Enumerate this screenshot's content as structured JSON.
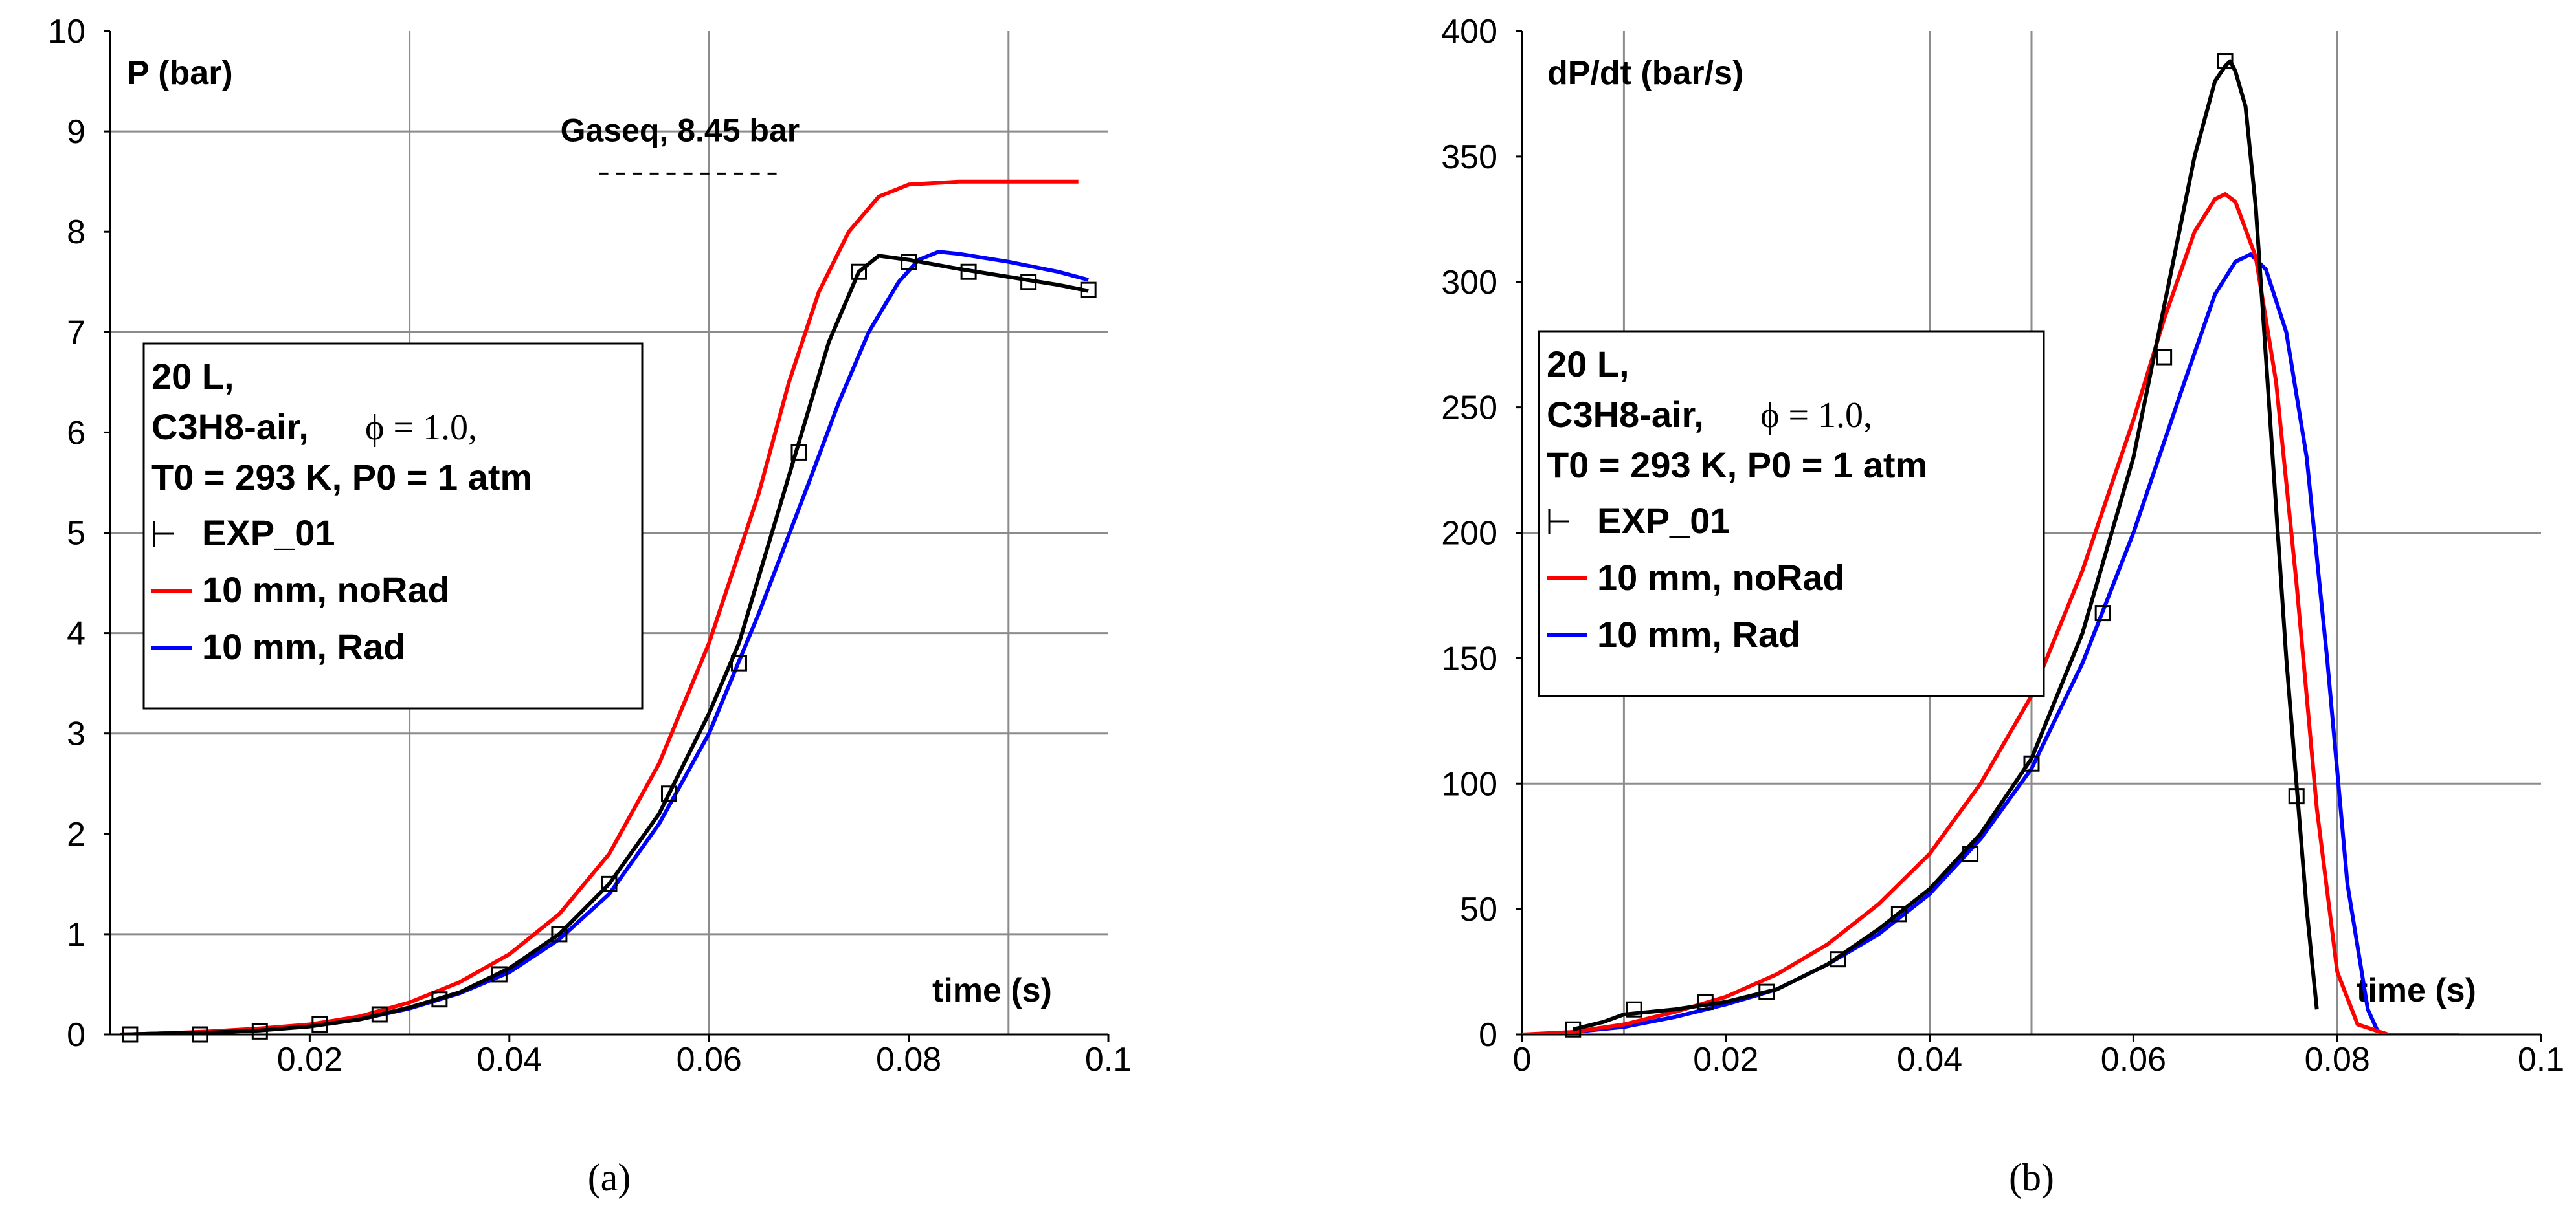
{
  "chart_data": [
    {
      "id": "a",
      "type": "line",
      "caption": "(a)",
      "ylabel": "P (bar)",
      "xlabel": "time (s)",
      "xlim": [
        0,
        0.1
      ],
      "ylim": [
        0,
        10
      ],
      "x_ticks": [
        0.02,
        0.04,
        0.06,
        0.08,
        0.1
      ],
      "x_tick_labels": [
        "0.02",
        "0.04",
        "0.06",
        "0.08",
        "0.1"
      ],
      "y_ticks": [
        0,
        1,
        2,
        3,
        4,
        5,
        6,
        7,
        8,
        9,
        10
      ],
      "y_tick_labels": [
        "0",
        "1",
        "2",
        "3",
        "4",
        "5",
        "6",
        "7",
        "8",
        "9",
        "10"
      ],
      "vgrid": [
        0.03,
        0.06,
        0.09
      ],
      "hgrid": [
        1,
        3,
        4,
        5,
        7,
        9
      ],
      "annotation": {
        "text": "Gaseq, 8.45 bar",
        "value": 8.45,
        "x_from": 0.049,
        "x_to": 0.067
      },
      "legend": {
        "line1": "20 L,",
        "line2_species": "C3H8-air,",
        "line2_phi": "ϕ = 1.0,",
        "line3": "T0 = 293 K, P0 = 1 atm",
        "entries": [
          "EXP_01",
          "10 mm, noRad",
          "10 mm, Rad"
        ]
      },
      "series": [
        {
          "name": "EXP_01",
          "color": "#000000",
          "x": [
            0.001,
            0.005,
            0.01,
            0.015,
            0.02,
            0.025,
            0.03,
            0.035,
            0.04,
            0.045,
            0.05,
            0.055,
            0.06,
            0.063,
            0.066,
            0.069,
            0.072,
            0.075,
            0.077,
            0.08,
            0.085,
            0.09,
            0.095,
            0.098
          ],
          "y": [
            0.0,
            0.01,
            0.02,
            0.04,
            0.08,
            0.15,
            0.27,
            0.42,
            0.66,
            1.0,
            1.5,
            2.2,
            3.2,
            3.9,
            4.9,
            5.9,
            6.9,
            7.6,
            7.76,
            7.72,
            7.63,
            7.55,
            7.47,
            7.41
          ],
          "markers_x": [
            0.002,
            0.009,
            0.015,
            0.021,
            0.027,
            0.033,
            0.039,
            0.045,
            0.05,
            0.056,
            0.063,
            0.069,
            0.075,
            0.08,
            0.086,
            0.092,
            0.098
          ],
          "markers_y": [
            0.0,
            0.0,
            0.03,
            0.1,
            0.2,
            0.35,
            0.6,
            1.0,
            1.5,
            2.4,
            3.7,
            5.8,
            7.6,
            7.7,
            7.6,
            7.5,
            7.42
          ]
        },
        {
          "name": "10 mm, noRad",
          "color": "#ff0000",
          "x": [
            0.001,
            0.005,
            0.01,
            0.015,
            0.02,
            0.025,
            0.03,
            0.035,
            0.04,
            0.045,
            0.05,
            0.055,
            0.06,
            0.065,
            0.068,
            0.071,
            0.074,
            0.077,
            0.08,
            0.085,
            0.09,
            0.095,
            0.097
          ],
          "y": [
            0.0,
            0.01,
            0.03,
            0.06,
            0.1,
            0.18,
            0.32,
            0.52,
            0.8,
            1.2,
            1.8,
            2.7,
            3.9,
            5.4,
            6.5,
            7.4,
            8.0,
            8.35,
            8.47,
            8.5,
            8.5,
            8.5,
            8.5
          ]
        },
        {
          "name": "10 mm, Rad",
          "color": "#0000ff",
          "x": [
            0.001,
            0.005,
            0.01,
            0.015,
            0.02,
            0.025,
            0.03,
            0.035,
            0.04,
            0.045,
            0.05,
            0.055,
            0.06,
            0.065,
            0.07,
            0.073,
            0.076,
            0.079,
            0.081,
            0.083,
            0.085,
            0.09,
            0.095,
            0.098
          ],
          "y": [
            0.0,
            0.01,
            0.02,
            0.05,
            0.09,
            0.15,
            0.26,
            0.41,
            0.62,
            0.95,
            1.4,
            2.1,
            3.0,
            4.2,
            5.5,
            6.3,
            7.0,
            7.5,
            7.72,
            7.8,
            7.78,
            7.7,
            7.6,
            7.52
          ]
        }
      ]
    },
    {
      "id": "b",
      "type": "line",
      "caption": "(b)",
      "ylabel": "dP/dt (bar/s)",
      "xlabel": "time (s)",
      "xlim": [
        0,
        0.1
      ],
      "ylim": [
        0,
        400
      ],
      "x_ticks": [
        0,
        0.02,
        0.04,
        0.06,
        0.08,
        0.1
      ],
      "x_tick_labels": [
        "0",
        "0.02",
        "0.04",
        "0.06",
        "0.08",
        "0.1"
      ],
      "y_ticks": [
        0,
        50,
        100,
        150,
        200,
        250,
        300,
        350,
        400
      ],
      "y_tick_labels": [
        "0",
        "50",
        "100",
        "150",
        "200",
        "250",
        "300",
        "350",
        "400"
      ],
      "vgrid": [
        0.01,
        0.04,
        0.05,
        0.08
      ],
      "hgrid": [
        100,
        200
      ],
      "legend": {
        "line1": "20 L,",
        "line2_species": "C3H8-air,",
        "line2_phi": "ϕ = 1.0,",
        "line3": "T0 = 293 K, P0 = 1 atm",
        "entries": [
          "EXP_01",
          "10 mm, noRad",
          "10 mm, Rad"
        ]
      },
      "series": [
        {
          "name": "EXP_01",
          "color": "#000000",
          "x": [
            0.005,
            0.008,
            0.01,
            0.015,
            0.02,
            0.025,
            0.03,
            0.035,
            0.04,
            0.045,
            0.05,
            0.055,
            0.06,
            0.063,
            0.066,
            0.068,
            0.069,
            0.0695,
            0.07,
            0.071,
            0.072,
            0.073,
            0.075,
            0.077,
            0.078
          ],
          "y": [
            2,
            5,
            8,
            10,
            13,
            18,
            28,
            42,
            58,
            80,
            110,
            160,
            230,
            290,
            350,
            380,
            386,
            388,
            384,
            370,
            330,
            270,
            150,
            50,
            10
          ],
          "markers_x": [
            0.005,
            0.011,
            0.018,
            0.024,
            0.031,
            0.037,
            0.044,
            0.05,
            0.057,
            0.063,
            0.069,
            0.076
          ],
          "markers_y": [
            2,
            10,
            13,
            17,
            30,
            48,
            72,
            108,
            168,
            270,
            388,
            95
          ]
        },
        {
          "name": "10 mm, noRad",
          "color": "#ff0000",
          "x": [
            0.0,
            0.005,
            0.01,
            0.015,
            0.02,
            0.025,
            0.03,
            0.035,
            0.04,
            0.045,
            0.05,
            0.055,
            0.06,
            0.063,
            0.066,
            0.068,
            0.069,
            0.07,
            0.072,
            0.074,
            0.076,
            0.078,
            0.08,
            0.082,
            0.085,
            0.09,
            0.092
          ],
          "y": [
            0,
            1,
            4,
            9,
            15,
            24,
            36,
            52,
            72,
            100,
            135,
            185,
            245,
            285,
            320,
            333,
            335,
            332,
            310,
            260,
            180,
            90,
            25,
            4,
            0,
            0,
            0
          ]
        },
        {
          "name": "10 mm, Rad",
          "color": "#0000ff",
          "x": [
            0.002,
            0.005,
            0.01,
            0.015,
            0.02,
            0.025,
            0.03,
            0.035,
            0.04,
            0.045,
            0.05,
            0.055,
            0.06,
            0.065,
            0.068,
            0.07,
            0.0715,
            0.073,
            0.075,
            0.077,
            0.079,
            0.081,
            0.083,
            0.084
          ],
          "y": [
            0,
            1,
            3,
            7,
            12,
            18,
            28,
            40,
            56,
            78,
            106,
            148,
            200,
            260,
            295,
            308,
            311,
            305,
            280,
            230,
            150,
            60,
            10,
            1
          ]
        }
      ]
    }
  ]
}
